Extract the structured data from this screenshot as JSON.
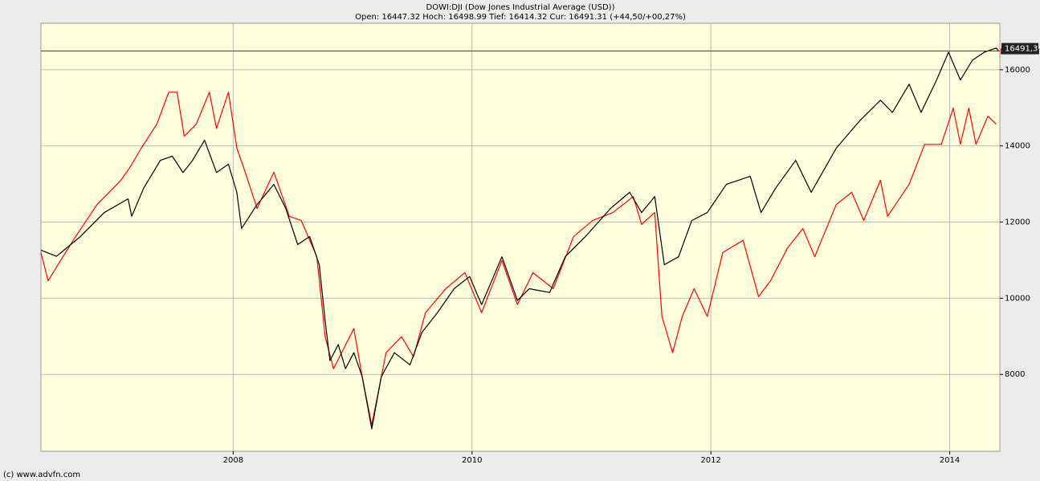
{
  "chart_data": {
    "type": "line",
    "title": "DOWI:DJI (Dow Jones Industrial Average (USD))",
    "subtitle": "Open: 16447.32 Hoch: 16498.99 Tief: 16414.32 Cur: 16491.31 (+44,50/+00,27%)",
    "footer": "(c) www.advfn.com",
    "xlim": [
      2006.39,
      2014.42
    ],
    "xticks": [
      2008,
      2010,
      2012,
      2014
    ],
    "ylim": [
      5980,
      17220
    ],
    "yticks": [
      8000,
      10000,
      12000,
      14000,
      16000
    ],
    "grid": true,
    "current_value": 16491.31,
    "current_label": "16491,3",
    "current_color": "#cc0000",
    "series": [
      {
        "color": "#ff0000",
        "x": [
          2006.39,
          2006.45,
          2006.66,
          2006.86,
          2007.06,
          2007.13,
          2007.23,
          2007.36,
          2007.46,
          2007.53,
          2007.59,
          2007.69,
          2007.8,
          2007.86,
          2007.96,
          2008.03,
          2008.1,
          2008.2,
          2008.34,
          2008.47,
          2008.57,
          2008.7,
          2008.77,
          2008.84,
          2009.01,
          2009.08,
          2009.16,
          2009.28,
          2009.41,
          2009.51,
          2009.61,
          2009.78,
          2009.94,
          2010.08,
          2010.25,
          2010.38,
          2010.51,
          2010.68,
          2010.85,
          2011.01,
          2011.18,
          2011.35,
          2011.42,
          2011.53,
          2011.59,
          2011.68,
          2011.76,
          2011.86,
          2011.97,
          2012.1,
          2012.27,
          2012.4,
          2012.5,
          2012.64,
          2012.77,
          2012.87,
          2013.05,
          2013.18,
          2013.28,
          2013.42,
          2013.48,
          2013.66,
          2013.79,
          2013.93,
          2014.03,
          2014.09,
          2014.16,
          2014.22,
          2014.32,
          2014.39
        ],
        "values": [
          11200,
          10460,
          11520,
          12460,
          13100,
          13410,
          13940,
          14570,
          15410,
          15410,
          14250,
          14570,
          15410,
          14460,
          15410,
          13940,
          13310,
          12360,
          13310,
          12150,
          12040,
          11090,
          8990,
          8150,
          9200,
          7940,
          6670,
          8570,
          8990,
          8460,
          9620,
          10250,
          10670,
          9620,
          10990,
          9830,
          10670,
          10250,
          11620,
          12040,
          12250,
          12670,
          11940,
          12250,
          9520,
          8570,
          9520,
          10250,
          9520,
          11200,
          11520,
          10040,
          10460,
          11310,
          11830,
          11090,
          12460,
          12780,
          12040,
          13100,
          12150,
          12990,
          14040,
          14040,
          14990,
          14040,
          14990,
          14040,
          14780,
          14570
        ]
      },
      {
        "color": "#000000",
        "x": [
          2006.39,
          2006.52,
          2006.72,
          2006.92,
          2007.12,
          2007.15,
          2007.25,
          2007.39,
          2007.49,
          2007.58,
          2007.66,
          2007.76,
          2007.86,
          2007.96,
          2008.03,
          2008.07,
          2008.2,
          2008.34,
          2008.44,
          2008.54,
          2008.64,
          2008.72,
          2008.77,
          2008.81,
          2008.88,
          2008.94,
          2009.01,
          2009.08,
          2009.16,
          2009.24,
          2009.35,
          2009.48,
          2009.58,
          2009.71,
          2009.85,
          2009.98,
          2010.08,
          2010.25,
          2010.38,
          2010.48,
          2010.65,
          2010.78,
          2010.95,
          2011.16,
          2011.32,
          2011.42,
          2011.53,
          2011.61,
          2011.73,
          2011.84,
          2011.97,
          2012.13,
          2012.33,
          2012.42,
          2012.54,
          2012.71,
          2012.84,
          2013.05,
          2013.25,
          2013.42,
          2013.52,
          2013.66,
          2013.76,
          2013.89,
          2013.99,
          2014.09,
          2014.19,
          2014.29,
          2014.39,
          2014.41
        ],
        "values": [
          11260,
          11100,
          11620,
          12250,
          12610,
          12150,
          12890,
          13620,
          13730,
          13300,
          13620,
          14150,
          13300,
          13520,
          12780,
          11830,
          12460,
          12990,
          12360,
          11410,
          11620,
          10880,
          9410,
          8360,
          8780,
          8150,
          8570,
          7940,
          6570,
          7940,
          8570,
          8250,
          9100,
          9620,
          10250,
          10570,
          9830,
          11090,
          9940,
          10250,
          10150,
          11090,
          11620,
          12360,
          12780,
          12250,
          12670,
          10880,
          11090,
          12040,
          12250,
          12990,
          13200,
          12250,
          12880,
          13620,
          12780,
          13940,
          14670,
          15200,
          14880,
          15620,
          14880,
          15730,
          16460,
          15730,
          16250,
          16460,
          16570,
          16491
        ]
      }
    ]
  }
}
